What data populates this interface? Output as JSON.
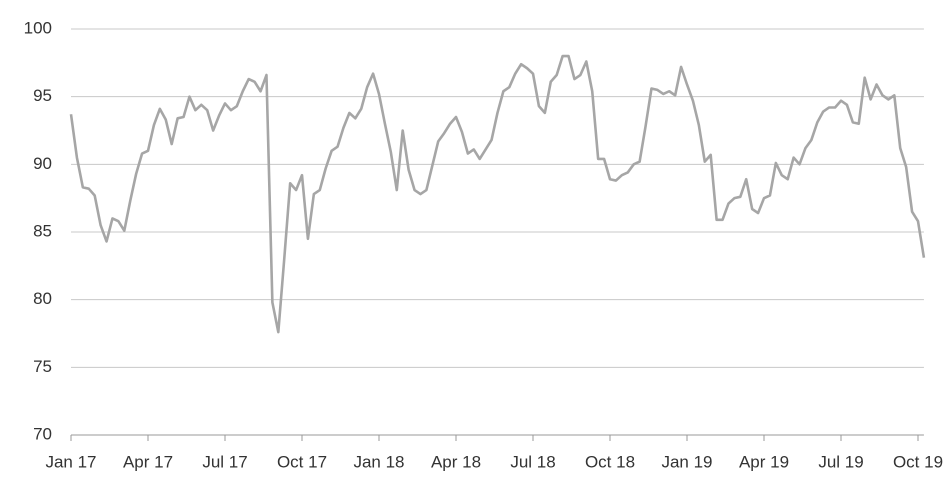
{
  "chart_data": {
    "type": "line",
    "categories": [
      "Jan 17",
      null,
      null,
      null,
      null,
      null,
      null,
      null,
      null,
      null,
      null,
      null,
      null,
      "Apr 17",
      null,
      null,
      null,
      null,
      null,
      null,
      null,
      null,
      null,
      null,
      null,
      null,
      "Jul 17",
      null,
      null,
      null,
      null,
      null,
      null,
      null,
      null,
      null,
      null,
      null,
      null,
      "Oct 17",
      null,
      null,
      null,
      null,
      null,
      null,
      null,
      null,
      null,
      null,
      null,
      null,
      "Jan 18",
      null,
      null,
      null,
      null,
      null,
      null,
      null,
      null,
      null,
      null,
      null,
      null,
      "Apr 18",
      null,
      null,
      null,
      null,
      null,
      null,
      null,
      null,
      null,
      null,
      null,
      null,
      "Jul 18",
      null,
      null,
      null,
      null,
      null,
      null,
      null,
      null,
      null,
      null,
      null,
      null,
      "Oct 18",
      null,
      null,
      null,
      null,
      null,
      null,
      null,
      null,
      null,
      null,
      null,
      null,
      "Jan 19",
      null,
      null,
      null,
      null,
      null,
      null,
      null,
      null,
      null,
      null,
      null,
      null,
      "Apr 19",
      null,
      null,
      null,
      null,
      null,
      null,
      null,
      null,
      null,
      null,
      null,
      null,
      "Jul 19",
      null,
      null,
      null,
      null,
      null,
      null,
      null,
      null,
      null,
      null,
      null,
      null,
      "Oct 19",
      null
    ],
    "values": [
      93.7,
      90.5,
      88.3,
      88.2,
      87.7,
      85.5,
      84.3,
      86.0,
      85.8,
      85.1,
      87.3,
      89.3,
      90.8,
      91.0,
      92.9,
      94.1,
      93.3,
      91.5,
      93.4,
      93.5,
      95.0,
      94.0,
      94.4,
      94.0,
      92.5,
      93.6,
      94.5,
      94.0,
      94.3,
      95.4,
      96.3,
      96.1,
      95.4,
      96.6,
      79.8,
      77.6,
      83.0,
      88.6,
      88.1,
      89.2,
      84.5,
      87.8,
      88.1,
      89.7,
      91.0,
      91.3,
      92.7,
      93.8,
      93.4,
      94.1,
      95.7,
      96.7,
      95.2,
      93.0,
      90.9,
      88.1,
      92.5,
      89.6,
      88.1,
      87.8,
      88.1,
      89.9,
      91.7,
      92.3,
      93.0,
      93.5,
      92.4,
      90.8,
      91.1,
      90.4,
      91.1,
      91.8,
      93.8,
      95.4,
      95.7,
      96.7,
      97.4,
      97.1,
      96.7,
      94.3,
      93.8,
      96.1,
      96.6,
      98.0,
      98.0,
      96.3,
      96.6,
      97.6,
      95.4,
      90.4,
      90.4,
      88.9,
      88.8,
      89.2,
      89.4,
      90.0,
      90.2,
      92.8,
      95.6,
      95.5,
      95.2,
      95.4,
      95.1,
      97.2,
      95.9,
      94.7,
      92.9,
      90.2,
      90.7,
      85.9,
      85.9,
      87.1,
      87.5,
      87.6,
      88.9,
      86.7,
      86.4,
      87.5,
      87.7,
      90.1,
      89.2,
      88.9,
      90.5,
      90.0,
      91.2,
      91.8,
      93.1,
      93.9,
      94.2,
      94.2,
      94.7,
      94.4,
      93.1,
      93.0,
      96.4,
      94.8,
      95.9,
      95.1,
      94.8,
      95.1,
      91.2,
      89.8,
      86.5,
      85.8,
      83.1
    ],
    "color": "#a6a6a6",
    "ylim": [
      70,
      100
    ],
    "yticks": [
      70,
      75,
      80,
      85,
      90,
      95,
      100
    ],
    "grid": true
  }
}
